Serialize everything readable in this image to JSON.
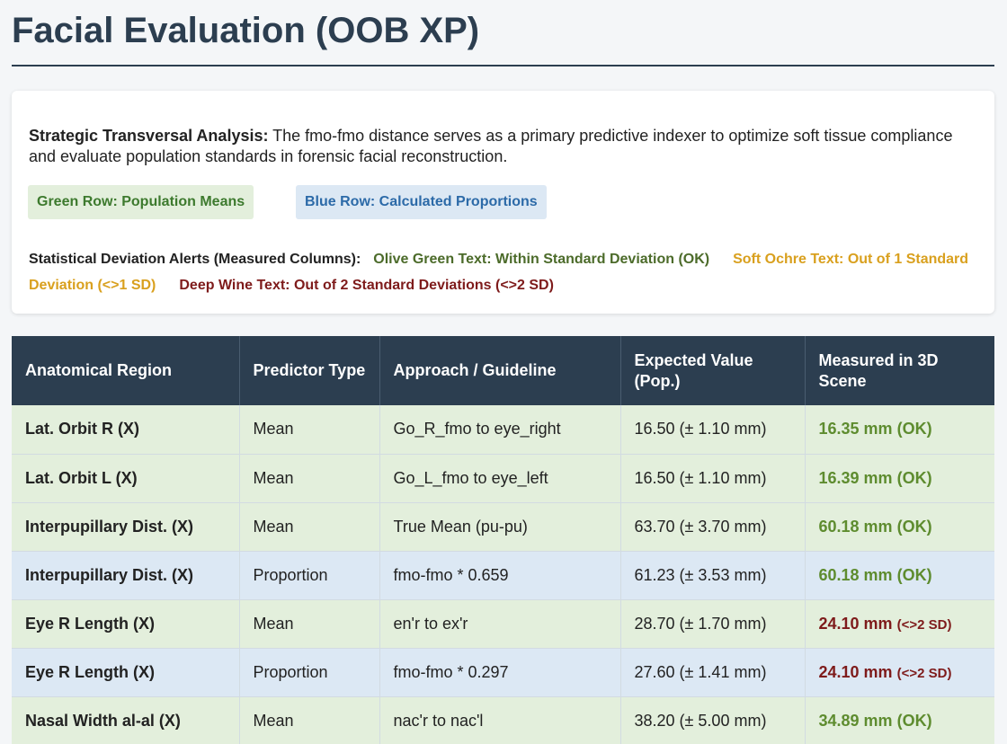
{
  "title": "Facial Evaluation (OOB XP)",
  "intro": {
    "label": "Strategic Transversal Analysis:",
    "text": " The fmo-fmo distance serves as a primary predictive indexer to optimize soft tissue compliance and evaluate population standards in forensic facial reconstruction."
  },
  "badges": {
    "green": "Green Row: Population Means",
    "blue": "Blue Row: Calculated Proportions"
  },
  "alerts": {
    "label": "Statistical Deviation Alerts (Measured Columns):",
    "ok": "Olive Green Text: Within Standard Deviation (OK)",
    "sd1": "Soft Ochre Text: Out of 1 Standard Deviation (<>1 SD)",
    "sd2": "Deep Wine Text: Out of 2 Standard Deviations (<>2 SD)"
  },
  "colors": {
    "header": "#2c3e50",
    "mean_row": "#e3efdc",
    "proportion_row": "#dce8f4",
    "ok": "#5e8c2f",
    "sd1": "#d9a01e",
    "sd2": "#7e1b1b"
  },
  "table": {
    "headers": [
      "Anatomical Region",
      "Predictor Type",
      "Approach / Guideline",
      "Expected Value (Pop.)",
      "Measured in 3D Scene"
    ],
    "rows": [
      {
        "region": "Lat. Orbit R (X)",
        "type": "Mean",
        "approach": "Go_R_fmo to eye_right",
        "expected": "16.50 (± 1.10 mm)",
        "measured": "16.35 mm",
        "status": "(OK)",
        "level": "ok",
        "kind": "mean"
      },
      {
        "region": "Lat. Orbit L (X)",
        "type": "Mean",
        "approach": "Go_L_fmo to eye_left",
        "expected": "16.50 (± 1.10 mm)",
        "measured": "16.39 mm",
        "status": "(OK)",
        "level": "ok",
        "kind": "mean"
      },
      {
        "region": "Interpupillary Dist. (X)",
        "type": "Mean",
        "approach": "True Mean (pu-pu)",
        "expected": "63.70 (± 3.70 mm)",
        "measured": "60.18 mm",
        "status": "(OK)",
        "level": "ok",
        "kind": "mean"
      },
      {
        "region": "Interpupillary Dist. (X)",
        "type": "Proportion",
        "approach": "fmo-fmo * 0.659",
        "expected": "61.23 (± 3.53 mm)",
        "measured": "60.18 mm",
        "status": "(OK)",
        "level": "ok",
        "kind": "prop"
      },
      {
        "region": "Eye R Length (X)",
        "type": "Mean",
        "approach": "en'r to ex'r",
        "expected": "28.70 (± 1.70 mm)",
        "measured": "24.10 mm",
        "status": "(<>2 SD)",
        "level": "sd2",
        "kind": "mean"
      },
      {
        "region": "Eye R Length (X)",
        "type": "Proportion",
        "approach": "fmo-fmo * 0.297",
        "expected": "27.60 (± 1.41 mm)",
        "measured": "24.10 mm",
        "status": "(<>2 SD)",
        "level": "sd2",
        "kind": "prop"
      },
      {
        "region": "Nasal Width al-al (X)",
        "type": "Mean",
        "approach": "nac'r to nac'l",
        "expected": "38.20 (± 5.00 mm)",
        "measured": "34.89 mm",
        "status": "(OK)",
        "level": "ok",
        "kind": "mean"
      }
    ]
  }
}
